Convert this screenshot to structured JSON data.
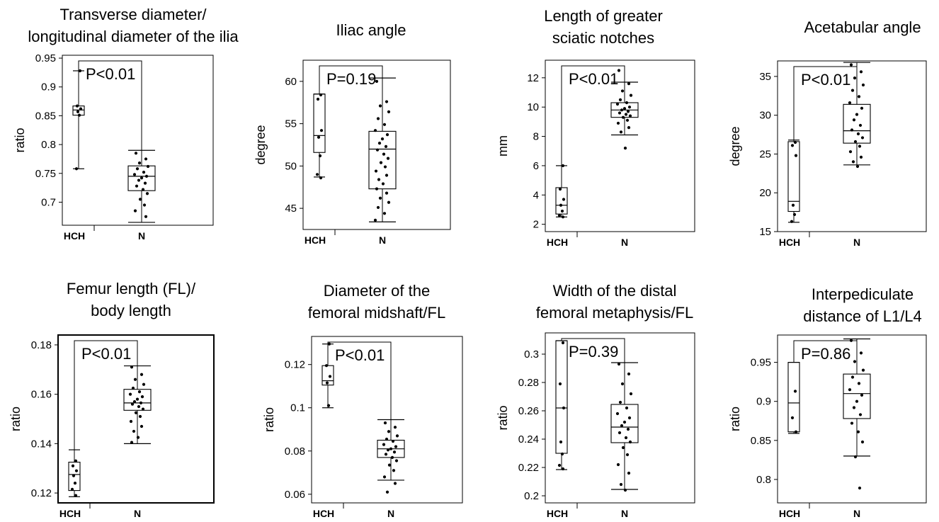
{
  "chart_data": [
    {
      "type": "box",
      "title": [
        "Transverse diameter/",
        "longitudinal diameter of the ilia"
      ],
      "ylabel": "ratio",
      "categories": [
        "HCH",
        "N"
      ],
      "p_value": "P<0.01",
      "ylim": [
        0.66,
        0.955
      ],
      "yticks": [
        "0.95",
        "0.9",
        "0.85",
        "0.8",
        "0.75",
        "0.7"
      ],
      "yticks_values": [
        0.95,
        0.9,
        0.85,
        0.8,
        0.75,
        0.7
      ],
      "groups": [
        {
          "name": "HCH",
          "min": 0.758,
          "q1": 0.851,
          "median": 0.86,
          "q3": 0.867,
          "max": 0.928,
          "points": [
            0.928,
            0.867,
            0.862,
            0.857,
            0.851,
            0.758
          ]
        },
        {
          "name": "N",
          "min": 0.665,
          "q1": 0.72,
          "median": 0.745,
          "q3": 0.763,
          "max": 0.79,
          "points": [
            0.785,
            0.775,
            0.768,
            0.762,
            0.758,
            0.752,
            0.748,
            0.745,
            0.742,
            0.738,
            0.733,
            0.728,
            0.722,
            0.715,
            0.705,
            0.695,
            0.685,
            0.675
          ]
        }
      ]
    },
    {
      "type": "box",
      "title": [
        "Iliac angle"
      ],
      "ylabel": "degree",
      "categories": [
        "HCH",
        "N"
      ],
      "p_value": "P=0.19",
      "ylim": [
        42.5,
        62.5
      ],
      "yticks": [
        "60",
        "55",
        "50",
        "45"
      ],
      "yticks_values": [
        60,
        55,
        50,
        45
      ],
      "groups": [
        {
          "name": "HCH",
          "min": 48.7,
          "q1": 51.6,
          "median": 53.6,
          "q3": 58.5,
          "max": 58.5,
          "points": [
            58.4,
            57.9,
            54.2,
            53.4,
            51.2,
            49.0,
            48.6
          ]
        },
        {
          "name": "N",
          "min": 43.4,
          "q1": 47.3,
          "median": 52.0,
          "q3": 54.1,
          "max": 60.4,
          "points": [
            60.0,
            57.6,
            57.1,
            56.4,
            55.6,
            54.9,
            54.2,
            53.7,
            53.2,
            52.7,
            52.3,
            51.9,
            51.4,
            50.9,
            50.4,
            49.9,
            49.4,
            48.9,
            48.4,
            47.9,
            47.3,
            46.8,
            46.2,
            45.7,
            45.1,
            44.4,
            43.6
          ]
        }
      ]
    },
    {
      "type": "box",
      "title": [
        "Length of greater",
        "sciatic notches"
      ],
      "ylabel": "mm",
      "categories": [
        "HCH",
        "N"
      ],
      "p_value": "P<0.01",
      "ylim": [
        1.5,
        13.2
      ],
      "yticks": [
        "12",
        "10",
        "8",
        "6",
        "4",
        "2"
      ],
      "yticks_values": [
        12,
        10,
        8,
        6,
        4,
        2
      ],
      "groups": [
        {
          "name": "HCH",
          "min": 2.5,
          "q1": 2.7,
          "median": 3.3,
          "q3": 4.5,
          "max": 6.0,
          "points": [
            6.0,
            4.4,
            3.7,
            3.3,
            2.9,
            2.6,
            2.5
          ]
        },
        {
          "name": "N",
          "min": 8.1,
          "q1": 9.3,
          "median": 9.8,
          "q3": 10.3,
          "max": 11.7,
          "points": [
            12.5,
            11.6,
            11.1,
            10.8,
            10.5,
            10.3,
            10.2,
            10.0,
            9.9,
            9.8,
            9.7,
            9.6,
            9.5,
            9.4,
            9.3,
            9.1,
            8.9,
            8.6,
            8.3,
            7.2
          ]
        }
      ]
    },
    {
      "type": "box",
      "title": [
        "Acetabular angle"
      ],
      "ylabel": "degree",
      "categories": [
        "HCH",
        "N"
      ],
      "p_value": "P<0.01",
      "ylim": [
        15,
        37
      ],
      "yticks": [
        "35",
        "30",
        "25",
        "20",
        "15"
      ],
      "yticks_values": [
        35,
        30,
        25,
        20,
        15
      ],
      "groups": [
        {
          "name": "HCH",
          "min": 16.2,
          "q1": 17.6,
          "median": 18.9,
          "q3": 26.6,
          "max": 26.8,
          "points": [
            26.5,
            26.1,
            24.8,
            18.4,
            17.2,
            16.3
          ]
        },
        {
          "name": "N",
          "min": 23.6,
          "q1": 26.4,
          "median": 28.0,
          "q3": 31.4,
          "max": 36.8,
          "points": [
            36.5,
            35.6,
            34.8,
            33.9,
            33.2,
            32.4,
            31.6,
            30.9,
            30.1,
            29.4,
            28.7,
            28.1,
            27.6,
            27.1,
            26.6,
            26.0,
            25.3,
            24.6,
            24.0,
            23.4
          ]
        }
      ]
    },
    {
      "type": "box",
      "title": [
        "Femur length (FL)/",
        "body length"
      ],
      "ylabel": "ratio",
      "categories": [
        "HCH",
        "N"
      ],
      "p_value": "P<0.01",
      "ylim": [
        0.116,
        0.184
      ],
      "yticks": [
        "0.18",
        "0.16",
        "0.14",
        "0.12"
      ],
      "yticks_values": [
        0.18,
        0.16,
        0.14,
        0.12
      ],
      "groups": [
        {
          "name": "HCH",
          "min": 0.1185,
          "q1": 0.121,
          "median": 0.1275,
          "q3": 0.1325,
          "max": 0.1375,
          "points": [
            0.133,
            0.131,
            0.129,
            0.127,
            0.124,
            0.1215,
            0.119
          ]
        },
        {
          "name": "N",
          "min": 0.14,
          "q1": 0.1535,
          "median": 0.1565,
          "q3": 0.162,
          "max": 0.1715,
          "points": [
            0.171,
            0.168,
            0.166,
            0.164,
            0.1625,
            0.161,
            0.16,
            0.159,
            0.158,
            0.157,
            0.1565,
            0.156,
            0.155,
            0.154,
            0.1525,
            0.151,
            0.149,
            0.147,
            0.145,
            0.1425,
            0.1405
          ]
        }
      ]
    },
    {
      "type": "box",
      "title": [
        "Diameter of the",
        "femoral midshaft/FL"
      ],
      "ylabel": "ratio",
      "categories": [
        "HCH",
        "N"
      ],
      "p_value": "P<0.01",
      "ylim": [
        0.056,
        0.133
      ],
      "yticks": [
        "0.12",
        "0.1",
        "0.08",
        "0.06"
      ],
      "yticks_values": [
        0.12,
        0.1,
        0.08,
        0.06
      ],
      "groups": [
        {
          "name": "HCH",
          "min": 0.1,
          "q1": 0.1105,
          "median": 0.1125,
          "q3": 0.1195,
          "max": 0.1295,
          "points": [
            0.1295,
            0.1195,
            0.1145,
            0.1115,
            0.101
          ]
        },
        {
          "name": "N",
          "min": 0.0665,
          "q1": 0.077,
          "median": 0.081,
          "q3": 0.085,
          "max": 0.0945,
          "points": [
            0.093,
            0.091,
            0.089,
            0.087,
            0.0855,
            0.0845,
            0.083,
            0.082,
            0.081,
            0.0805,
            0.0795,
            0.0785,
            0.077,
            0.0755,
            0.0735,
            0.071,
            0.068,
            0.065,
            0.061
          ]
        }
      ]
    },
    {
      "type": "box",
      "title": [
        "Width of the distal",
        "femoral metaphysis/FL"
      ],
      "ylabel": "ratio",
      "categories": [
        "HCH",
        "N"
      ],
      "p_value": "P=0.39",
      "ylim": [
        0.195,
        0.315
      ],
      "yticks": [
        "0.3",
        "0.28",
        "0.26",
        "0.24",
        "0.22",
        "0.2"
      ],
      "yticks_values": [
        0.3,
        0.28,
        0.26,
        0.24,
        0.22,
        0.2
      ],
      "groups": [
        {
          "name": "HCH",
          "min": 0.2185,
          "q1": 0.23,
          "median": 0.262,
          "q3": 0.3095,
          "max": 0.3095,
          "points": [
            0.308,
            0.279,
            0.262,
            0.238,
            0.2295,
            0.2215,
            0.219
          ]
        },
        {
          "name": "N",
          "min": 0.2045,
          "q1": 0.2375,
          "median": 0.2485,
          "q3": 0.2645,
          "max": 0.294,
          "points": [
            0.293,
            0.286,
            0.279,
            0.272,
            0.266,
            0.262,
            0.258,
            0.255,
            0.252,
            0.2495,
            0.247,
            0.2445,
            0.241,
            0.238,
            0.234,
            0.229,
            0.222,
            0.216,
            0.208,
            0.204
          ]
        }
      ]
    },
    {
      "type": "box",
      "title": [
        "Interpediculate",
        "distance of L1/L4"
      ],
      "ylabel": "ratio",
      "categories": [
        "HCH",
        "N"
      ],
      "p_value": "P=0.86",
      "ylim": [
        0.77,
        0.985
      ],
      "yticks": [
        "0.95",
        "0.9",
        "0.85",
        "0.8"
      ],
      "yticks_values": [
        0.95,
        0.9,
        0.85,
        0.8
      ],
      "groups": [
        {
          "name": "HCH",
          "min": 0.859,
          "q1": 0.861,
          "median": 0.898,
          "q3": 0.95,
          "max": 0.95,
          "points": [
            0.913,
            0.879,
            0.861
          ]
        },
        {
          "name": "N",
          "min": 0.83,
          "q1": 0.878,
          "median": 0.91,
          "q3": 0.935,
          "max": 0.98,
          "points": [
            0.978,
            0.962,
            0.951,
            0.94,
            0.931,
            0.923,
            0.915,
            0.908,
            0.9,
            0.892,
            0.883,
            0.872,
            0.861,
            0.848,
            0.829,
            0.789
          ]
        }
      ]
    }
  ]
}
